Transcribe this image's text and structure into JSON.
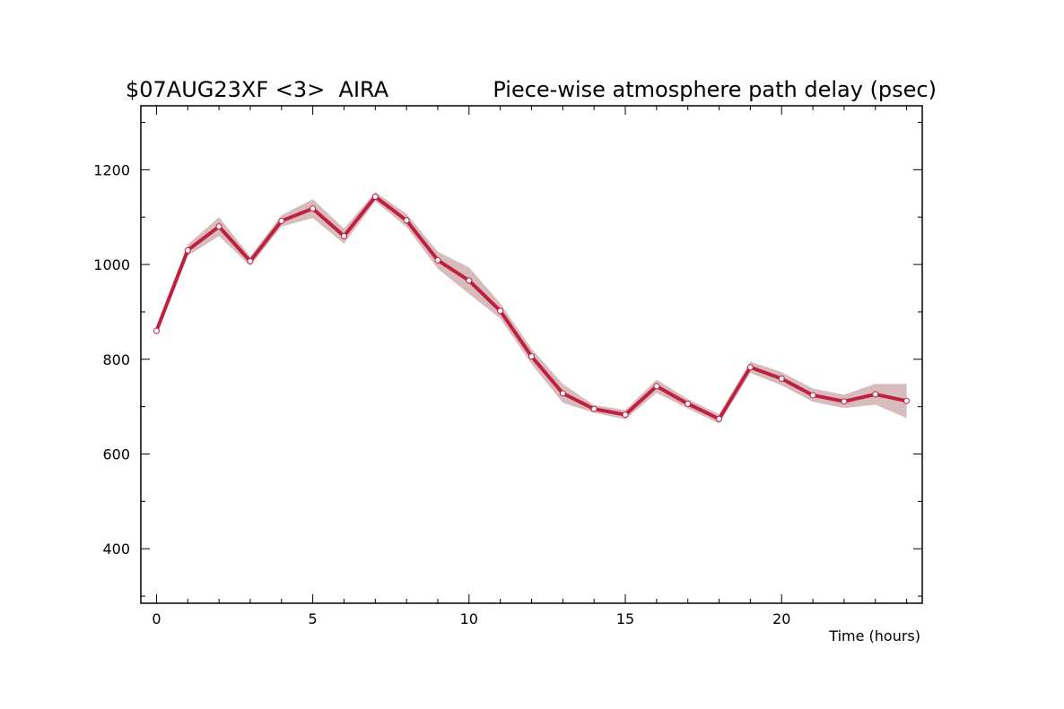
{
  "header": {
    "left_title": "$07AUG23XF <3>  AIRA",
    "right_title": "Piece-wise atmosphere path delay (psec)"
  },
  "colors": {
    "line": "#c0203f",
    "band": "#d8bcbd",
    "marker_fill": "#ffffff",
    "axis": "#000000"
  },
  "chart_data": {
    "type": "line",
    "title": "Piece-wise atmosphere path delay (psec)",
    "xlabel": "Time (hours)",
    "ylabel": "",
    "xlim": [
      -0.5,
      24.5
    ],
    "ylim": [
      285,
      1335
    ],
    "x_ticks": [
      0,
      5,
      10,
      15,
      20
    ],
    "y_ticks": [
      400,
      600,
      800,
      1000,
      1200
    ],
    "grid": false,
    "series": [
      {
        "x": [
          0,
          1,
          2,
          3,
          4,
          5,
          6,
          7,
          8,
          9,
          10,
          11,
          12,
          13,
          14,
          15,
          16,
          17,
          18,
          19,
          20,
          21,
          22,
          23,
          24
        ],
        "y": [
          860,
          1030,
          1080,
          1007,
          1092,
          1118,
          1060,
          1143,
          1093,
          1009,
          966,
          902,
          806,
          728,
          695,
          683,
          743,
          706,
          674,
          783,
          759,
          724,
          711,
          726,
          712
        ],
        "err": [
          10,
          12,
          20,
          10,
          12,
          20,
          16,
          10,
          14,
          18,
          28,
          16,
          16,
          20,
          8,
          10,
          14,
          10,
          10,
          12,
          14,
          14,
          14,
          22,
          36
        ]
      }
    ]
  }
}
